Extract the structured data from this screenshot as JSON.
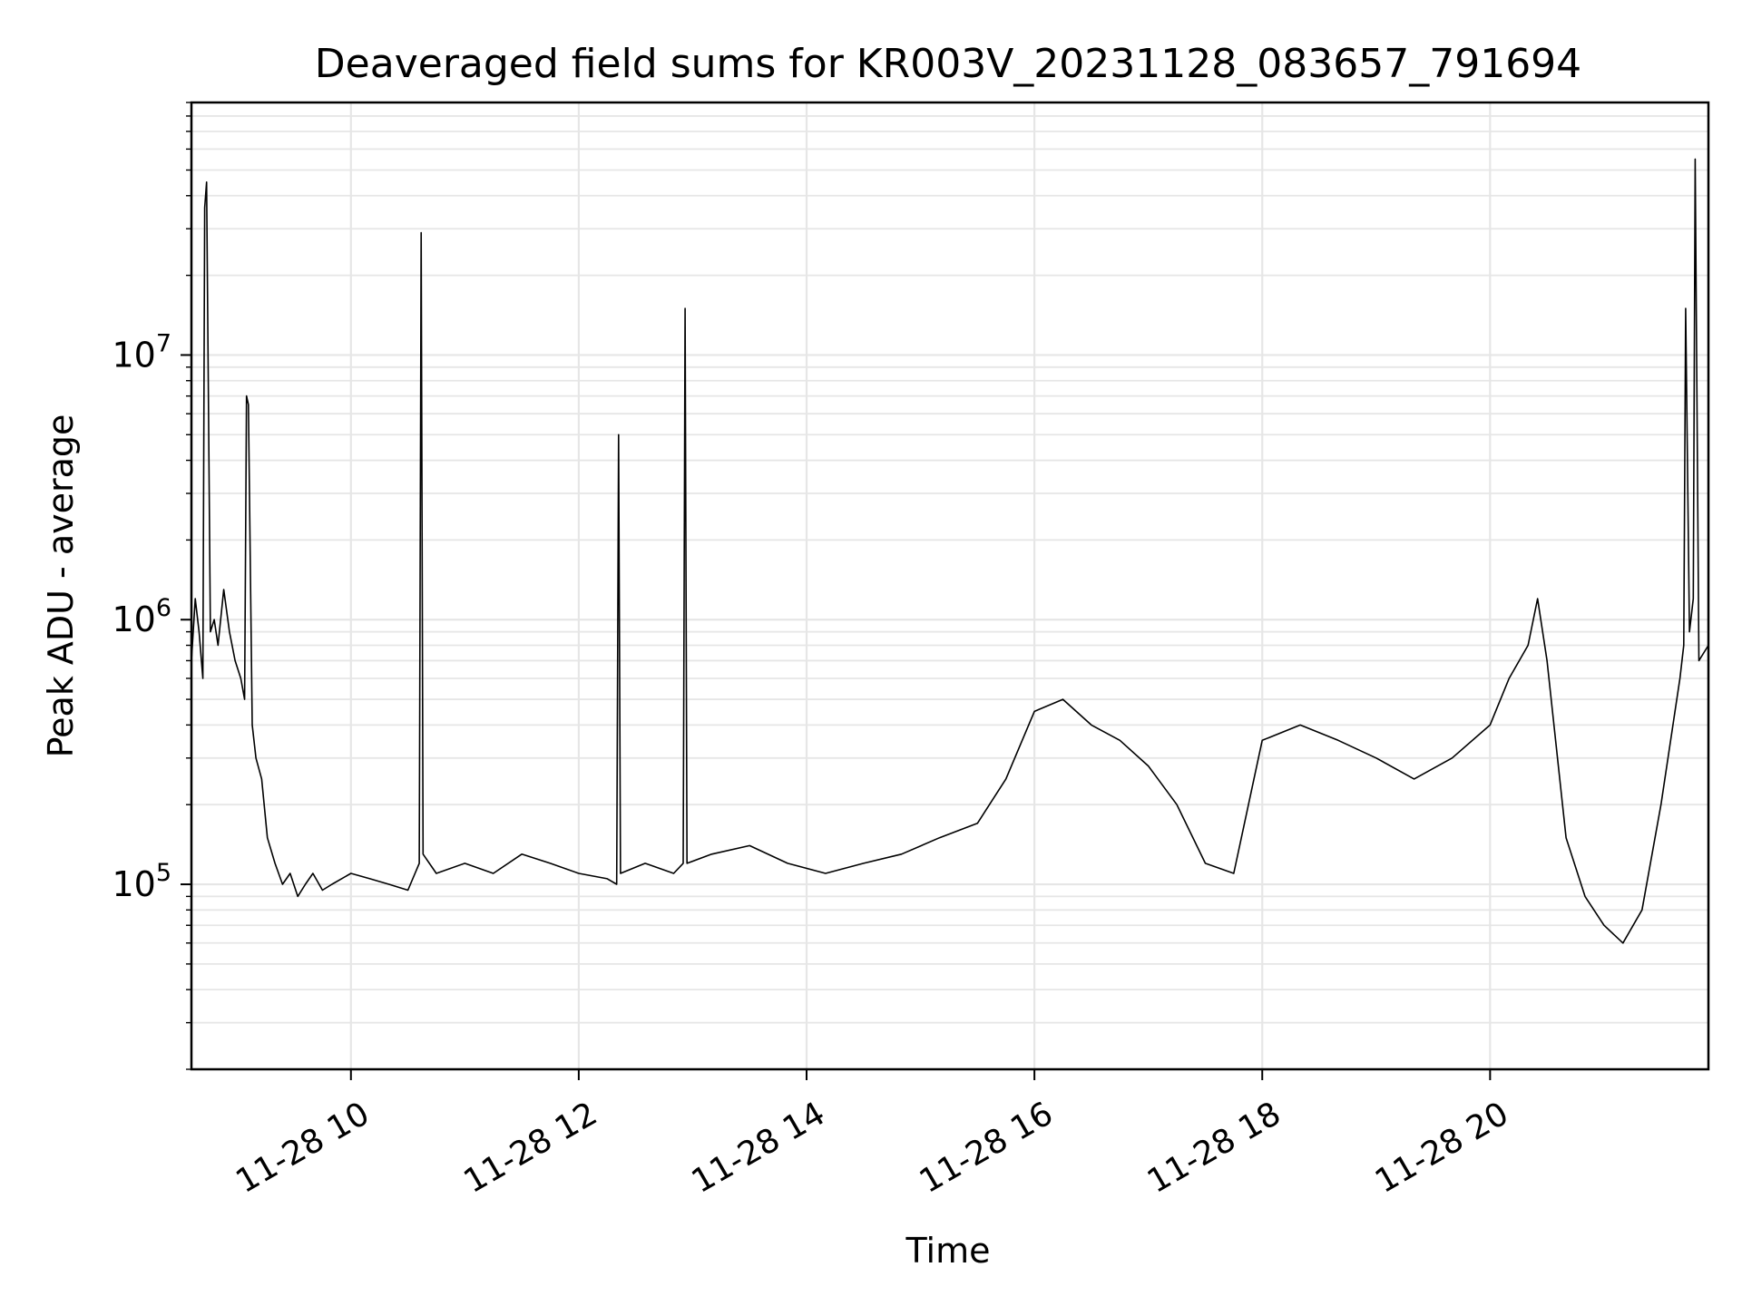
{
  "chart_data": {
    "type": "line",
    "title": "Deaveraged field sums for KR003V_20231128_083657_791694",
    "xlabel": "Time",
    "ylabel": "Peak ADU - average",
    "xscale": "date",
    "yscale": "log",
    "xlim": [
      "2023-11-28 08:36",
      "2023-11-28 21:55"
    ],
    "ylim": [
      20000,
      90000000
    ],
    "grid": true,
    "legend": "none",
    "line_color": "#000000",
    "x_ticks": [
      {
        "value": "2023-11-28 10:00",
        "label": "11-28 10"
      },
      {
        "value": "2023-11-28 12:00",
        "label": "11-28 12"
      },
      {
        "value": "2023-11-28 14:00",
        "label": "11-28 14"
      },
      {
        "value": "2023-11-28 16:00",
        "label": "11-28 16"
      },
      {
        "value": "2023-11-28 18:00",
        "label": "11-28 18"
      },
      {
        "value": "2023-11-28 20:00",
        "label": "11-28 20"
      }
    ],
    "y_ticks": [
      {
        "value": 100000,
        "base": "10",
        "exp": "5"
      },
      {
        "value": 1000000,
        "base": "10",
        "exp": "6"
      },
      {
        "value": 10000000,
        "base": "10",
        "exp": "7"
      }
    ],
    "series": [
      {
        "x": [
          "2023-11-28 08:36",
          "2023-11-28 08:38",
          "2023-11-28 08:40",
          "2023-11-28 08:42",
          "2023-11-28 08:43",
          "2023-11-28 08:44",
          "2023-11-28 08:46",
          "2023-11-28 08:48",
          "2023-11-28 08:50",
          "2023-11-28 08:53",
          "2023-11-28 08:56",
          "2023-11-28 08:59",
          "2023-11-28 09:02",
          "2023-11-28 09:04",
          "2023-11-28 09:05",
          "2023-11-28 09:06",
          "2023-11-28 09:08",
          "2023-11-28 09:10",
          "2023-11-28 09:13",
          "2023-11-28 09:16",
          "2023-11-28 09:20",
          "2023-11-28 09:24",
          "2023-11-28 09:28",
          "2023-11-28 09:32",
          "2023-11-28 09:36",
          "2023-11-28 09:40",
          "2023-11-28 09:45",
          "2023-11-28 09:50",
          "2023-11-28 10:00",
          "2023-11-28 10:10",
          "2023-11-28 10:20",
          "2023-11-28 10:30",
          "2023-11-28 10:36",
          "2023-11-28 10:37",
          "2023-11-28 10:38",
          "2023-11-28 10:45",
          "2023-11-28 11:00",
          "2023-11-28 11:15",
          "2023-11-28 11:30",
          "2023-11-28 11:45",
          "2023-11-28 12:00",
          "2023-11-28 12:15",
          "2023-11-28 12:20",
          "2023-11-28 12:21",
          "2023-11-28 12:22",
          "2023-11-28 12:35",
          "2023-11-28 12:50",
          "2023-11-28 12:55",
          "2023-11-28 12:56",
          "2023-11-28 12:57",
          "2023-11-28 13:10",
          "2023-11-28 13:30",
          "2023-11-28 13:50",
          "2023-11-28 14:10",
          "2023-11-28 14:30",
          "2023-11-28 14:50",
          "2023-11-28 15:10",
          "2023-11-28 15:30",
          "2023-11-28 15:45",
          "2023-11-28 16:00",
          "2023-11-28 16:15",
          "2023-11-28 16:30",
          "2023-11-28 16:45",
          "2023-11-28 17:00",
          "2023-11-28 17:15",
          "2023-11-28 17:30",
          "2023-11-28 17:45",
          "2023-11-28 18:00",
          "2023-11-28 18:20",
          "2023-11-28 18:40",
          "2023-11-28 19:00",
          "2023-11-28 19:20",
          "2023-11-28 19:40",
          "2023-11-28 20:00",
          "2023-11-28 20:10",
          "2023-11-28 20:20",
          "2023-11-28 20:25",
          "2023-11-28 20:30",
          "2023-11-28 20:40",
          "2023-11-28 20:50",
          "2023-11-28 21:00",
          "2023-11-28 21:10",
          "2023-11-28 21:20",
          "2023-11-28 21:30",
          "2023-11-28 21:40",
          "2023-11-28 21:42",
          "2023-11-28 21:43",
          "2023-11-28 21:45",
          "2023-11-28 21:47",
          "2023-11-28 21:48",
          "2023-11-28 21:50",
          "2023-11-28 21:55"
        ],
        "y": [
          700000,
          1200000,
          900000,
          600000,
          36000000,
          45000000,
          900000,
          1000000,
          800000,
          1300000,
          900000,
          700000,
          600000,
          500000,
          7000000,
          6500000,
          400000,
          300000,
          250000,
          150000,
          120000,
          100000,
          110000,
          90000,
          100000,
          110000,
          95000,
          100000,
          110000,
          105000,
          100000,
          95000,
          120000,
          29000000,
          130000,
          110000,
          120000,
          110000,
          130000,
          120000,
          110000,
          105000,
          100000,
          5000000,
          110000,
          120000,
          110000,
          120000,
          15000000,
          120000,
          130000,
          140000,
          120000,
          110000,
          120000,
          130000,
          150000,
          170000,
          250000,
          450000,
          500000,
          400000,
          350000,
          280000,
          200000,
          120000,
          110000,
          350000,
          400000,
          350000,
          300000,
          250000,
          300000,
          400000,
          600000,
          800000,
          1200000,
          700000,
          150000,
          90000,
          70000,
          60000,
          80000,
          200000,
          600000,
          800000,
          15000000,
          900000,
          1200000,
          55000000,
          700000,
          800000
        ]
      }
    ]
  }
}
